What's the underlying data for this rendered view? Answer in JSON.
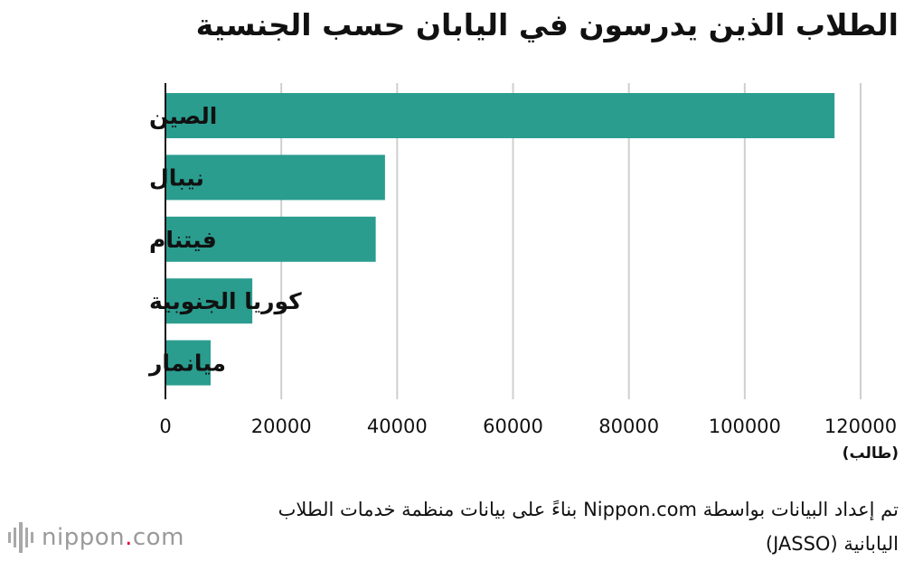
{
  "chart_data": {
    "type": "bar",
    "orientation": "horizontal",
    "title": "الطلاب الذين يدرسون في اليابان حسب الجنسية",
    "categories": [
      "الصين",
      "نيبال",
      "فيتنام",
      "كوريا الجنوبية",
      "ميانمار"
    ],
    "values": [
      115500,
      37900,
      36300,
      15000,
      7800
    ],
    "xlim": [
      0,
      120000
    ],
    "xticks": [
      "0",
      "20000",
      "40000",
      "60000",
      "80000",
      "100000",
      "120000"
    ],
    "xtick_values": [
      0,
      20000,
      40000,
      60000,
      80000,
      100000,
      120000
    ],
    "unit_label": "(طالب)",
    "grid": true,
    "bar_color": "#2a9d8f",
    "grid_color": "#cfcfcf"
  },
  "source_text": "تم إعداد البيانات بواسطة Nippon.com بناءً على بيانات منظمة خدمات الطلاب اليابانية  (JASSO)",
  "logo": {
    "brand": "nippon",
    "dot": ".",
    "suffix": "com",
    "dot_color": "#e6002d"
  }
}
